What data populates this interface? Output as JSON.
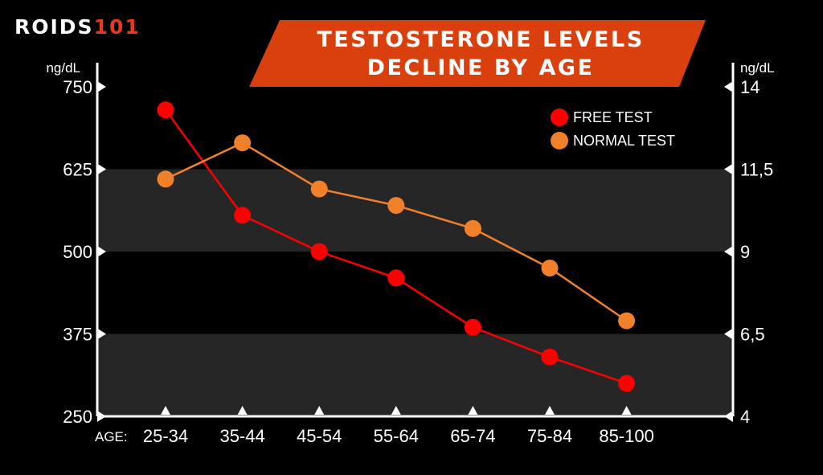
{
  "brand": {
    "name_part1": "ROIDS",
    "name_part2": "101",
    "accent_color": "#e8391a"
  },
  "title_banner": {
    "line1": "TESTOSTERONE LEVELS",
    "line2": "DECLINE BY AGE",
    "color": "#d9400e"
  },
  "chart_data": {
    "type": "line",
    "xlabel": "AGE:",
    "categories": [
      "25-34",
      "35-44",
      "45-54",
      "55-64",
      "65-74",
      "75-84",
      "85-100"
    ],
    "y_left": {
      "unit": "ng/dL",
      "ticks": [
        "750",
        "625",
        "500",
        "375",
        "250"
      ],
      "range": [
        250,
        750
      ]
    },
    "y_right": {
      "unit": "ng/dL",
      "ticks": [
        "14",
        "11,5",
        "9",
        "6,5",
        "4"
      ],
      "range": [
        4,
        14
      ]
    },
    "bands": [
      {
        "from": 500,
        "to": 625
      },
      {
        "from": 250,
        "to": 375
      }
    ],
    "series": [
      {
        "name": "FREE TEST",
        "axis": "right",
        "color": "#ff0000",
        "values": [
          13.3,
          10.1,
          9.0,
          8.2,
          6.7,
          5.8,
          5.0
        ]
      },
      {
        "name": "NORMAL TEST",
        "axis": "right",
        "color": "#f0812a",
        "values": [
          11.2,
          12.3,
          10.9,
          10.4,
          9.7,
          8.5,
          6.9
        ]
      }
    ],
    "legend_position": "top-right",
    "grid": false
  }
}
